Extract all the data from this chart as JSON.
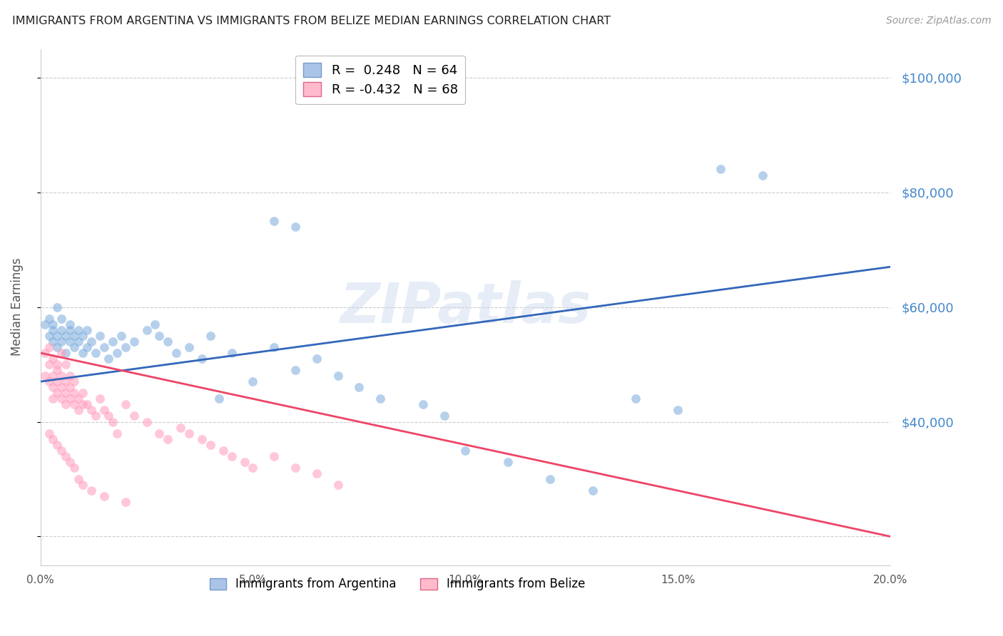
{
  "title": "IMMIGRANTS FROM ARGENTINA VS IMMIGRANTS FROM BELIZE MEDIAN EARNINGS CORRELATION CHART",
  "source": "Source: ZipAtlas.com",
  "ylabel": "Median Earnings",
  "xlim": [
    0.0,
    0.2
  ],
  "ylim": [
    15000,
    105000
  ],
  "argentina_color": "#7aaadd",
  "belize_color": "#ff99bb",
  "argentina_line_color": "#3366bb",
  "belize_line_color": "#ee4466",
  "argentina_R": 0.248,
  "argentina_N": 64,
  "belize_R": -0.432,
  "belize_N": 68,
  "legend_label_1": "Immigrants from Argentina",
  "legend_label_2": "Immigrants from Belize",
  "watermark": "ZIPatlas",
  "background_color": "#ffffff",
  "title_color": "#222222",
  "scatter_alpha": 0.55,
  "scatter_size": 85,
  "argentina_scatter_x": [
    0.001,
    0.002,
    0.002,
    0.003,
    0.003,
    0.003,
    0.004,
    0.004,
    0.004,
    0.005,
    0.005,
    0.005,
    0.006,
    0.006,
    0.007,
    0.007,
    0.007,
    0.008,
    0.008,
    0.009,
    0.009,
    0.01,
    0.01,
    0.011,
    0.011,
    0.012,
    0.013,
    0.014,
    0.015,
    0.016,
    0.017,
    0.018,
    0.019,
    0.02,
    0.022,
    0.025,
    0.027,
    0.028,
    0.03,
    0.032,
    0.035,
    0.038,
    0.04,
    0.042,
    0.045,
    0.05,
    0.055,
    0.06,
    0.065,
    0.07,
    0.075,
    0.08,
    0.09,
    0.095,
    0.1,
    0.11,
    0.12,
    0.13,
    0.14,
    0.15,
    0.055,
    0.06,
    0.16,
    0.17
  ],
  "argentina_scatter_y": [
    57000,
    55000,
    58000,
    56000,
    54000,
    57000,
    55000,
    53000,
    60000,
    56000,
    54000,
    58000,
    55000,
    52000,
    56000,
    54000,
    57000,
    55000,
    53000,
    56000,
    54000,
    55000,
    52000,
    56000,
    53000,
    54000,
    52000,
    55000,
    53000,
    51000,
    54000,
    52000,
    55000,
    53000,
    54000,
    56000,
    57000,
    55000,
    54000,
    52000,
    53000,
    51000,
    55000,
    44000,
    52000,
    47000,
    53000,
    49000,
    51000,
    48000,
    46000,
    44000,
    43000,
    41000,
    35000,
    33000,
    30000,
    28000,
    44000,
    42000,
    75000,
    74000,
    84000,
    83000
  ],
  "belize_scatter_x": [
    0.001,
    0.001,
    0.002,
    0.002,
    0.002,
    0.003,
    0.003,
    0.003,
    0.003,
    0.004,
    0.004,
    0.004,
    0.004,
    0.005,
    0.005,
    0.005,
    0.005,
    0.006,
    0.006,
    0.006,
    0.006,
    0.007,
    0.007,
    0.007,
    0.008,
    0.008,
    0.008,
    0.009,
    0.009,
    0.01,
    0.01,
    0.011,
    0.012,
    0.013,
    0.014,
    0.015,
    0.016,
    0.017,
    0.018,
    0.02,
    0.022,
    0.025,
    0.028,
    0.03,
    0.033,
    0.035,
    0.038,
    0.04,
    0.043,
    0.045,
    0.048,
    0.05,
    0.055,
    0.06,
    0.065,
    0.07,
    0.002,
    0.003,
    0.004,
    0.005,
    0.006,
    0.007,
    0.008,
    0.009,
    0.01,
    0.012,
    0.015,
    0.02
  ],
  "belize_scatter_y": [
    52000,
    48000,
    50000,
    47000,
    53000,
    48000,
    46000,
    51000,
    44000,
    49000,
    47000,
    45000,
    50000,
    48000,
    46000,
    44000,
    52000,
    47000,
    45000,
    43000,
    50000,
    46000,
    44000,
    48000,
    45000,
    43000,
    47000,
    44000,
    42000,
    45000,
    43000,
    43000,
    42000,
    41000,
    44000,
    42000,
    41000,
    40000,
    38000,
    43000,
    41000,
    40000,
    38000,
    37000,
    39000,
    38000,
    37000,
    36000,
    35000,
    34000,
    33000,
    32000,
    34000,
    32000,
    31000,
    29000,
    38000,
    37000,
    36000,
    35000,
    34000,
    33000,
    32000,
    30000,
    29000,
    28000,
    27000,
    26000
  ],
  "ytick_positions": [
    20000,
    40000,
    60000,
    80000,
    100000
  ],
  "ytick_labels_right": [
    "",
    "$40,000",
    "$60,000",
    "$80,000",
    "$100,000"
  ],
  "xtick_positions": [
    0.0,
    0.05,
    0.1,
    0.15,
    0.2
  ],
  "xtick_labels": [
    "0.0%",
    "5.0%",
    "10.0%",
    "15.0%",
    "20.0%"
  ]
}
